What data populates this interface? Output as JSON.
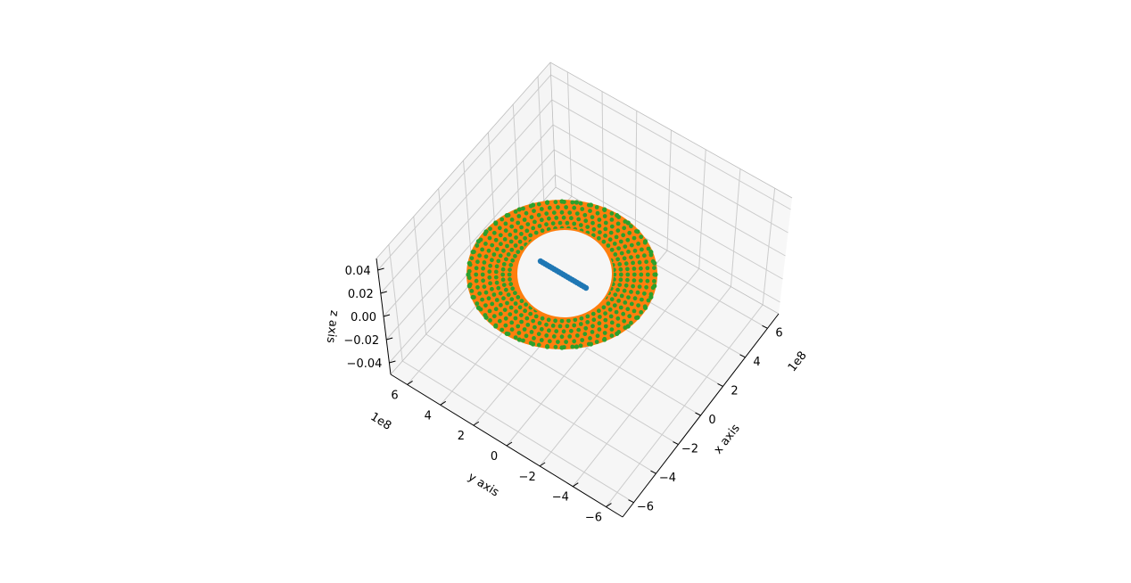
{
  "chart_data": {
    "type": "scatter3d",
    "title": "",
    "xlabel": "x axis",
    "ylabel": "y axis",
    "zlabel": "z axis",
    "x_ticks": [
      "−6",
      "−4",
      "−2",
      "0",
      "2",
      "4",
      "6"
    ],
    "y_ticks": [
      "−6",
      "−4",
      "−2",
      "0",
      "2",
      "4",
      "6"
    ],
    "z_ticks": [
      "−0.04",
      "−0.02",
      "0.00",
      "0.02",
      "0.04"
    ],
    "x_offset_text": "1e8",
    "y_offset_text": "1e8",
    "xlim": [
      -700000000,
      700000000
    ],
    "ylim": [
      -700000000,
      700000000
    ],
    "zlim": [
      -0.05,
      0.05
    ],
    "grid": true,
    "series": [
      {
        "color": "#1f77b4",
        "shape": "line segment",
        "x": [
          -300000000,
          300000000
        ],
        "y": [
          -300000000,
          300000000
        ],
        "z": [
          0,
          0
        ]
      },
      {
        "color": "#ff7f0e",
        "shape": "cylindrical shell (inner)",
        "radius": 430000000,
        "axis": "x"
      },
      {
        "color": "#2ca02c",
        "shape": "cylindrical shell (outer)",
        "radius": 430000000,
        "axis": "x"
      }
    ]
  }
}
